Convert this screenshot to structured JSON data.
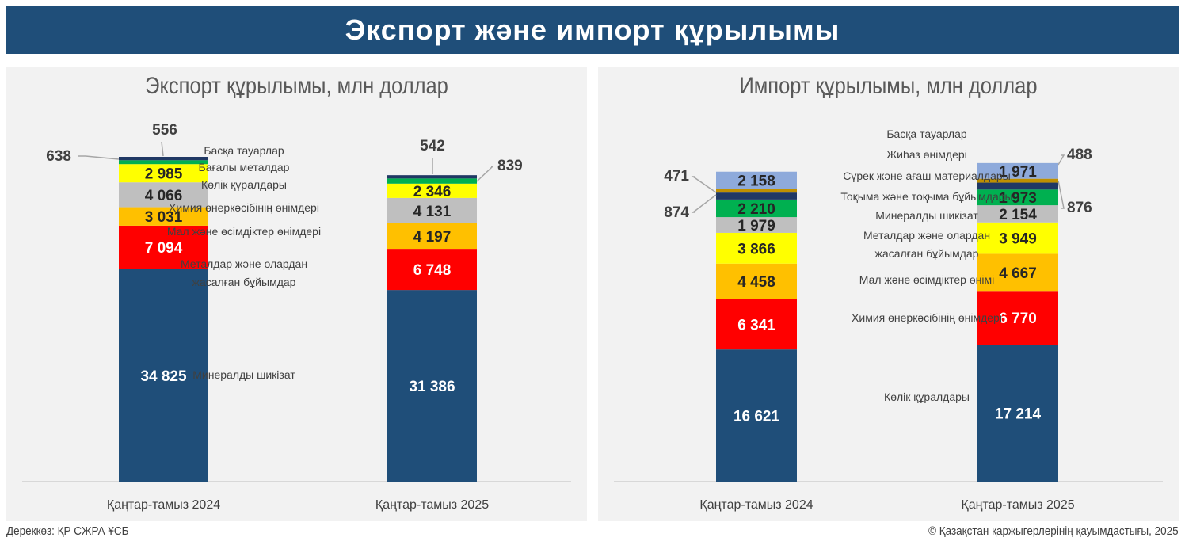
{
  "header": {
    "title": "Экспорт және импорт құрылымы"
  },
  "footer": {
    "source": "Дереккөз: ҚР СЖРА ҰСБ",
    "copyright": "© Қазақстан қаржыгерлерінің қауымдастығы, 2025"
  },
  "chart_data": [
    {
      "type": "bar",
      "stacked": true,
      "title": "Экспорт құрылымы, млн доллар",
      "categories": [
        "Қаңтар-тамыз 2024",
        "Қаңтар-тамыз 2025"
      ],
      "series": [
        {
          "name": "Минералды шикізат",
          "color": "#1f4e79",
          "values": [
            34825,
            31386
          ]
        },
        {
          "name": "Металдар және олардан жасалған бұйымдар",
          "color": "#ff0000",
          "values": [
            7094,
            6748
          ]
        },
        {
          "name": "Мал және өсімдіктер өнімдері",
          "color": "#ffc000",
          "values": [
            3031,
            4197
          ]
        },
        {
          "name": "Химия өнеркәсібінің өнімдері",
          "color": "#bfbfbf",
          "values": [
            4066,
            4131
          ]
        },
        {
          "name": "Көлік құралдары",
          "color": "#ffff00",
          "values": [
            2985,
            2346
          ]
        },
        {
          "name": "Бағалы металдар",
          "color": "#00b050",
          "values": [
            638,
            839
          ]
        },
        {
          "name": "Басқа тауарлар",
          "color": "#203864",
          "values": [
            556,
            542
          ]
        }
      ]
    },
    {
      "type": "bar",
      "stacked": true,
      "title": "Импорт құрылымы, млн доллар",
      "categories": [
        "Қаңтар-тамыз 2024",
        "Қаңтар-тамыз 2025"
      ],
      "series": [
        {
          "name": "Көлік құралдары",
          "color": "#1f4e79",
          "values": [
            16621,
            17214
          ]
        },
        {
          "name": "Химия өнеркәсібінің өнімдері",
          "color": "#ff0000",
          "values": [
            6341,
            6770
          ]
        },
        {
          "name": "Мал және өсімдіктер өнімі",
          "color": "#ffc000",
          "values": [
            4458,
            4667
          ]
        },
        {
          "name": "Металдар және олардан жасалған бұйымдар",
          "color": "#ffff00",
          "values": [
            3866,
            3949
          ]
        },
        {
          "name": "Минералды шикізат",
          "color": "#bfbfbf",
          "values": [
            1979,
            2154
          ]
        },
        {
          "name": "Тоқыма және тоқыма бұйымдары",
          "color": "#00b050",
          "values": [
            2210,
            1973
          ]
        },
        {
          "name": "Сүрек және ағаш материалдары",
          "color": "#203864",
          "values": [
            874,
            876
          ]
        },
        {
          "name": "Жиһаз өнімдері",
          "color": "#bf9000",
          "values": [
            471,
            488
          ]
        },
        {
          "name": "Басқа тауарлар",
          "color": "#8eaadb",
          "values": [
            2158,
            1971
          ]
        }
      ]
    }
  ]
}
